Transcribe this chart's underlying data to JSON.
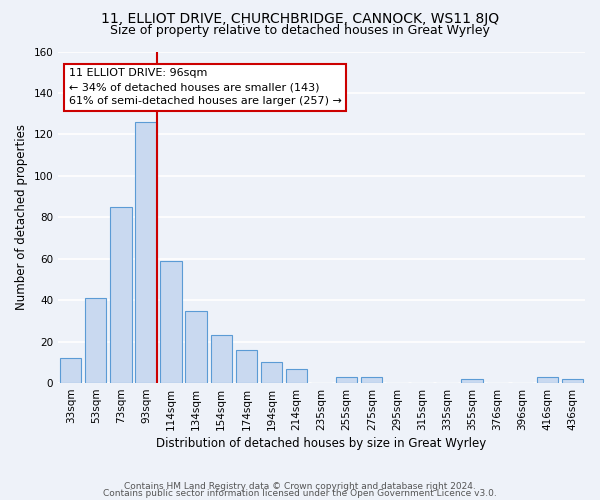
{
  "title": "11, ELLIOT DRIVE, CHURCHBRIDGE, CANNOCK, WS11 8JQ",
  "subtitle": "Size of property relative to detached houses in Great Wyrley",
  "xlabel": "Distribution of detached houses by size in Great Wyrley",
  "ylabel": "Number of detached properties",
  "categories": [
    "33sqm",
    "53sqm",
    "73sqm",
    "93sqm",
    "114sqm",
    "134sqm",
    "154sqm",
    "174sqm",
    "194sqm",
    "214sqm",
    "235sqm",
    "255sqm",
    "275sqm",
    "295sqm",
    "315sqm",
    "335sqm",
    "355sqm",
    "376sqm",
    "396sqm",
    "416sqm",
    "436sqm"
  ],
  "values": [
    12,
    41,
    85,
    126,
    59,
    35,
    23,
    16,
    10,
    7,
    0,
    3,
    3,
    0,
    0,
    0,
    2,
    0,
    0,
    3,
    2
  ],
  "bar_color": "#c9d9f0",
  "bar_edge_color": "#5b9bd5",
  "ylim": [
    0,
    160
  ],
  "yticks": [
    0,
    20,
    40,
    60,
    80,
    100,
    120,
    140,
    160
  ],
  "annotation_box_text": "11 ELLIOT DRIVE: 96sqm\n← 34% of detached houses are smaller (143)\n61% of semi-detached houses are larger (257) →",
  "annotation_box_color": "#ffffff",
  "annotation_box_edge_color": "#cc0000",
  "footer_line1": "Contains HM Land Registry data © Crown copyright and database right 2024.",
  "footer_line2": "Contains public sector information licensed under the Open Government Licence v3.0.",
  "background_color": "#eef2f9",
  "grid_color": "#ffffff",
  "title_fontsize": 10,
  "subtitle_fontsize": 9,
  "axis_label_fontsize": 8.5,
  "tick_fontsize": 7.5,
  "annotation_fontsize": 8,
  "footer_fontsize": 6.5
}
